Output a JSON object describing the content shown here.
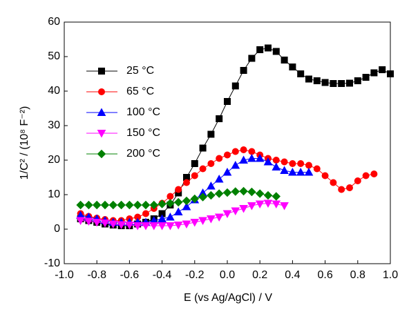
{
  "chart_data": {
    "type": "line",
    "xlabel": "E (vs Ag/AgCl) / V",
    "ylabel": "1/C² / (10⁸ F⁻²)",
    "xlim": [
      -1.0,
      1.0
    ],
    "ylim": [
      -10,
      60
    ],
    "xticks": [
      {
        "value": -1.0,
        "label": "-1.0"
      },
      {
        "value": -0.8,
        "label": "-0.8"
      },
      {
        "value": -0.6,
        "label": "-0.6"
      },
      {
        "value": -0.4,
        "label": "-0.4"
      },
      {
        "value": -0.2,
        "label": "-0.2"
      },
      {
        "value": 0,
        "label": "0.0"
      },
      {
        "value": 0.2,
        "label": "0.2"
      },
      {
        "value": 0.4,
        "label": "0.4"
      },
      {
        "value": 0.6,
        "label": "0.6"
      },
      {
        "value": 0.8,
        "label": "0.8"
      },
      {
        "value": 1.0,
        "label": "1.0"
      }
    ],
    "yticks": [
      -10,
      0,
      10,
      20,
      30,
      40,
      50,
      60
    ],
    "legend": "upper-left",
    "series": [
      {
        "name": "25 °C",
        "color": "#000000",
        "marker": "square",
        "x": [
          -0.9,
          -0.85,
          -0.8,
          -0.75,
          -0.7,
          -0.65,
          -0.6,
          -0.55,
          -0.5,
          -0.45,
          -0.4,
          -0.35,
          -0.3,
          -0.25,
          -0.2,
          -0.15,
          -0.1,
          -0.05,
          0,
          0.05,
          0.1,
          0.15,
          0.2,
          0.25,
          0.3,
          0.35,
          0.4,
          0.45,
          0.5,
          0.55,
          0.6,
          0.65,
          0.7,
          0.75,
          0.8,
          0.85,
          0.9,
          0.95,
          1.0
        ],
        "values": [
          3,
          2.5,
          2,
          1.5,
          1.2,
          1,
          1,
          1.5,
          2,
          3,
          4.5,
          7,
          10.5,
          15,
          19,
          23.5,
          27.5,
          32,
          37,
          41.5,
          46,
          49.5,
          52,
          52.5,
          51.5,
          49,
          47,
          45,
          43.5,
          43,
          42.5,
          42.2,
          42.2,
          42.3,
          43,
          44,
          45.3,
          46.2,
          45
        ]
      },
      {
        "name": "65 °C",
        "color": "#ff0000",
        "marker": "circle",
        "x": [
          -0.9,
          -0.85,
          -0.8,
          -0.75,
          -0.7,
          -0.65,
          -0.6,
          -0.55,
          -0.5,
          -0.45,
          -0.4,
          -0.35,
          -0.3,
          -0.25,
          -0.2,
          -0.15,
          -0.1,
          -0.05,
          0,
          0.05,
          0.1,
          0.15,
          0.2,
          0.25,
          0.3,
          0.35,
          0.4,
          0.45,
          0.5,
          0.55,
          0.6,
          0.65,
          0.7,
          0.75,
          0.8,
          0.85,
          0.9
        ],
        "values": [
          4.5,
          3.7,
          3.2,
          2.8,
          2.5,
          2.5,
          3,
          3.5,
          4.5,
          6,
          7.5,
          9.5,
          11.5,
          13.5,
          15.5,
          17.5,
          19,
          20.5,
          21.5,
          22.5,
          23,
          22.5,
          21.5,
          20.5,
          20,
          19.5,
          19,
          19,
          18.5,
          17.5,
          15.5,
          13.5,
          11.5,
          12,
          14,
          15.5,
          16
        ]
      },
      {
        "name": "100 °C",
        "color": "#0000ff",
        "marker": "triangle-up",
        "x": [
          -0.9,
          -0.85,
          -0.8,
          -0.75,
          -0.7,
          -0.65,
          -0.6,
          -0.55,
          -0.5,
          -0.45,
          -0.4,
          -0.35,
          -0.3,
          -0.25,
          -0.2,
          -0.15,
          -0.1,
          -0.05,
          0,
          0.05,
          0.1,
          0.15,
          0.2,
          0.25,
          0.3,
          0.35,
          0.4,
          0.45,
          0.5
        ],
        "values": [
          4,
          3.5,
          3,
          2.5,
          2,
          2,
          2,
          2,
          2,
          2.5,
          3,
          3.5,
          5,
          6.5,
          8.5,
          10.5,
          12.5,
          14.5,
          16.5,
          18.5,
          20,
          20.5,
          20.5,
          19.5,
          18,
          17,
          16.5,
          16.5,
          16.5
        ]
      },
      {
        "name": "150 °C",
        "color": "#ff00ff",
        "marker": "triangle-down",
        "x": [
          -0.9,
          -0.85,
          -0.8,
          -0.75,
          -0.7,
          -0.65,
          -0.6,
          -0.55,
          -0.5,
          -0.45,
          -0.4,
          -0.35,
          -0.3,
          -0.25,
          -0.2,
          -0.15,
          -0.1,
          -0.05,
          0,
          0.05,
          0.1,
          0.15,
          0.2,
          0.25,
          0.3,
          0.35
        ],
        "values": [
          2.5,
          2.3,
          2,
          1.8,
          1.5,
          1.3,
          1.2,
          1,
          1,
          1,
          1,
          1,
          1.2,
          1.5,
          2,
          2.5,
          3,
          3.5,
          4.5,
          5.3,
          6,
          6.8,
          7.3,
          7.5,
          7.3,
          6.8
        ]
      },
      {
        "name": "200 °C",
        "color": "#008000",
        "marker": "diamond",
        "x": [
          -0.9,
          -0.85,
          -0.8,
          -0.75,
          -0.7,
          -0.65,
          -0.6,
          -0.55,
          -0.5,
          -0.45,
          -0.4,
          -0.35,
          -0.3,
          -0.25,
          -0.2,
          -0.15,
          -0.1,
          -0.05,
          0,
          0.05,
          0.1,
          0.15,
          0.2,
          0.25,
          0.3
        ],
        "values": [
          7,
          7,
          7,
          7,
          7,
          7,
          7,
          7,
          7,
          7,
          7.3,
          7.5,
          7.8,
          8.2,
          8.8,
          9.3,
          9.8,
          10.3,
          10.6,
          10.9,
          11,
          10.8,
          10.3,
          9.8,
          9.5
        ]
      }
    ]
  }
}
